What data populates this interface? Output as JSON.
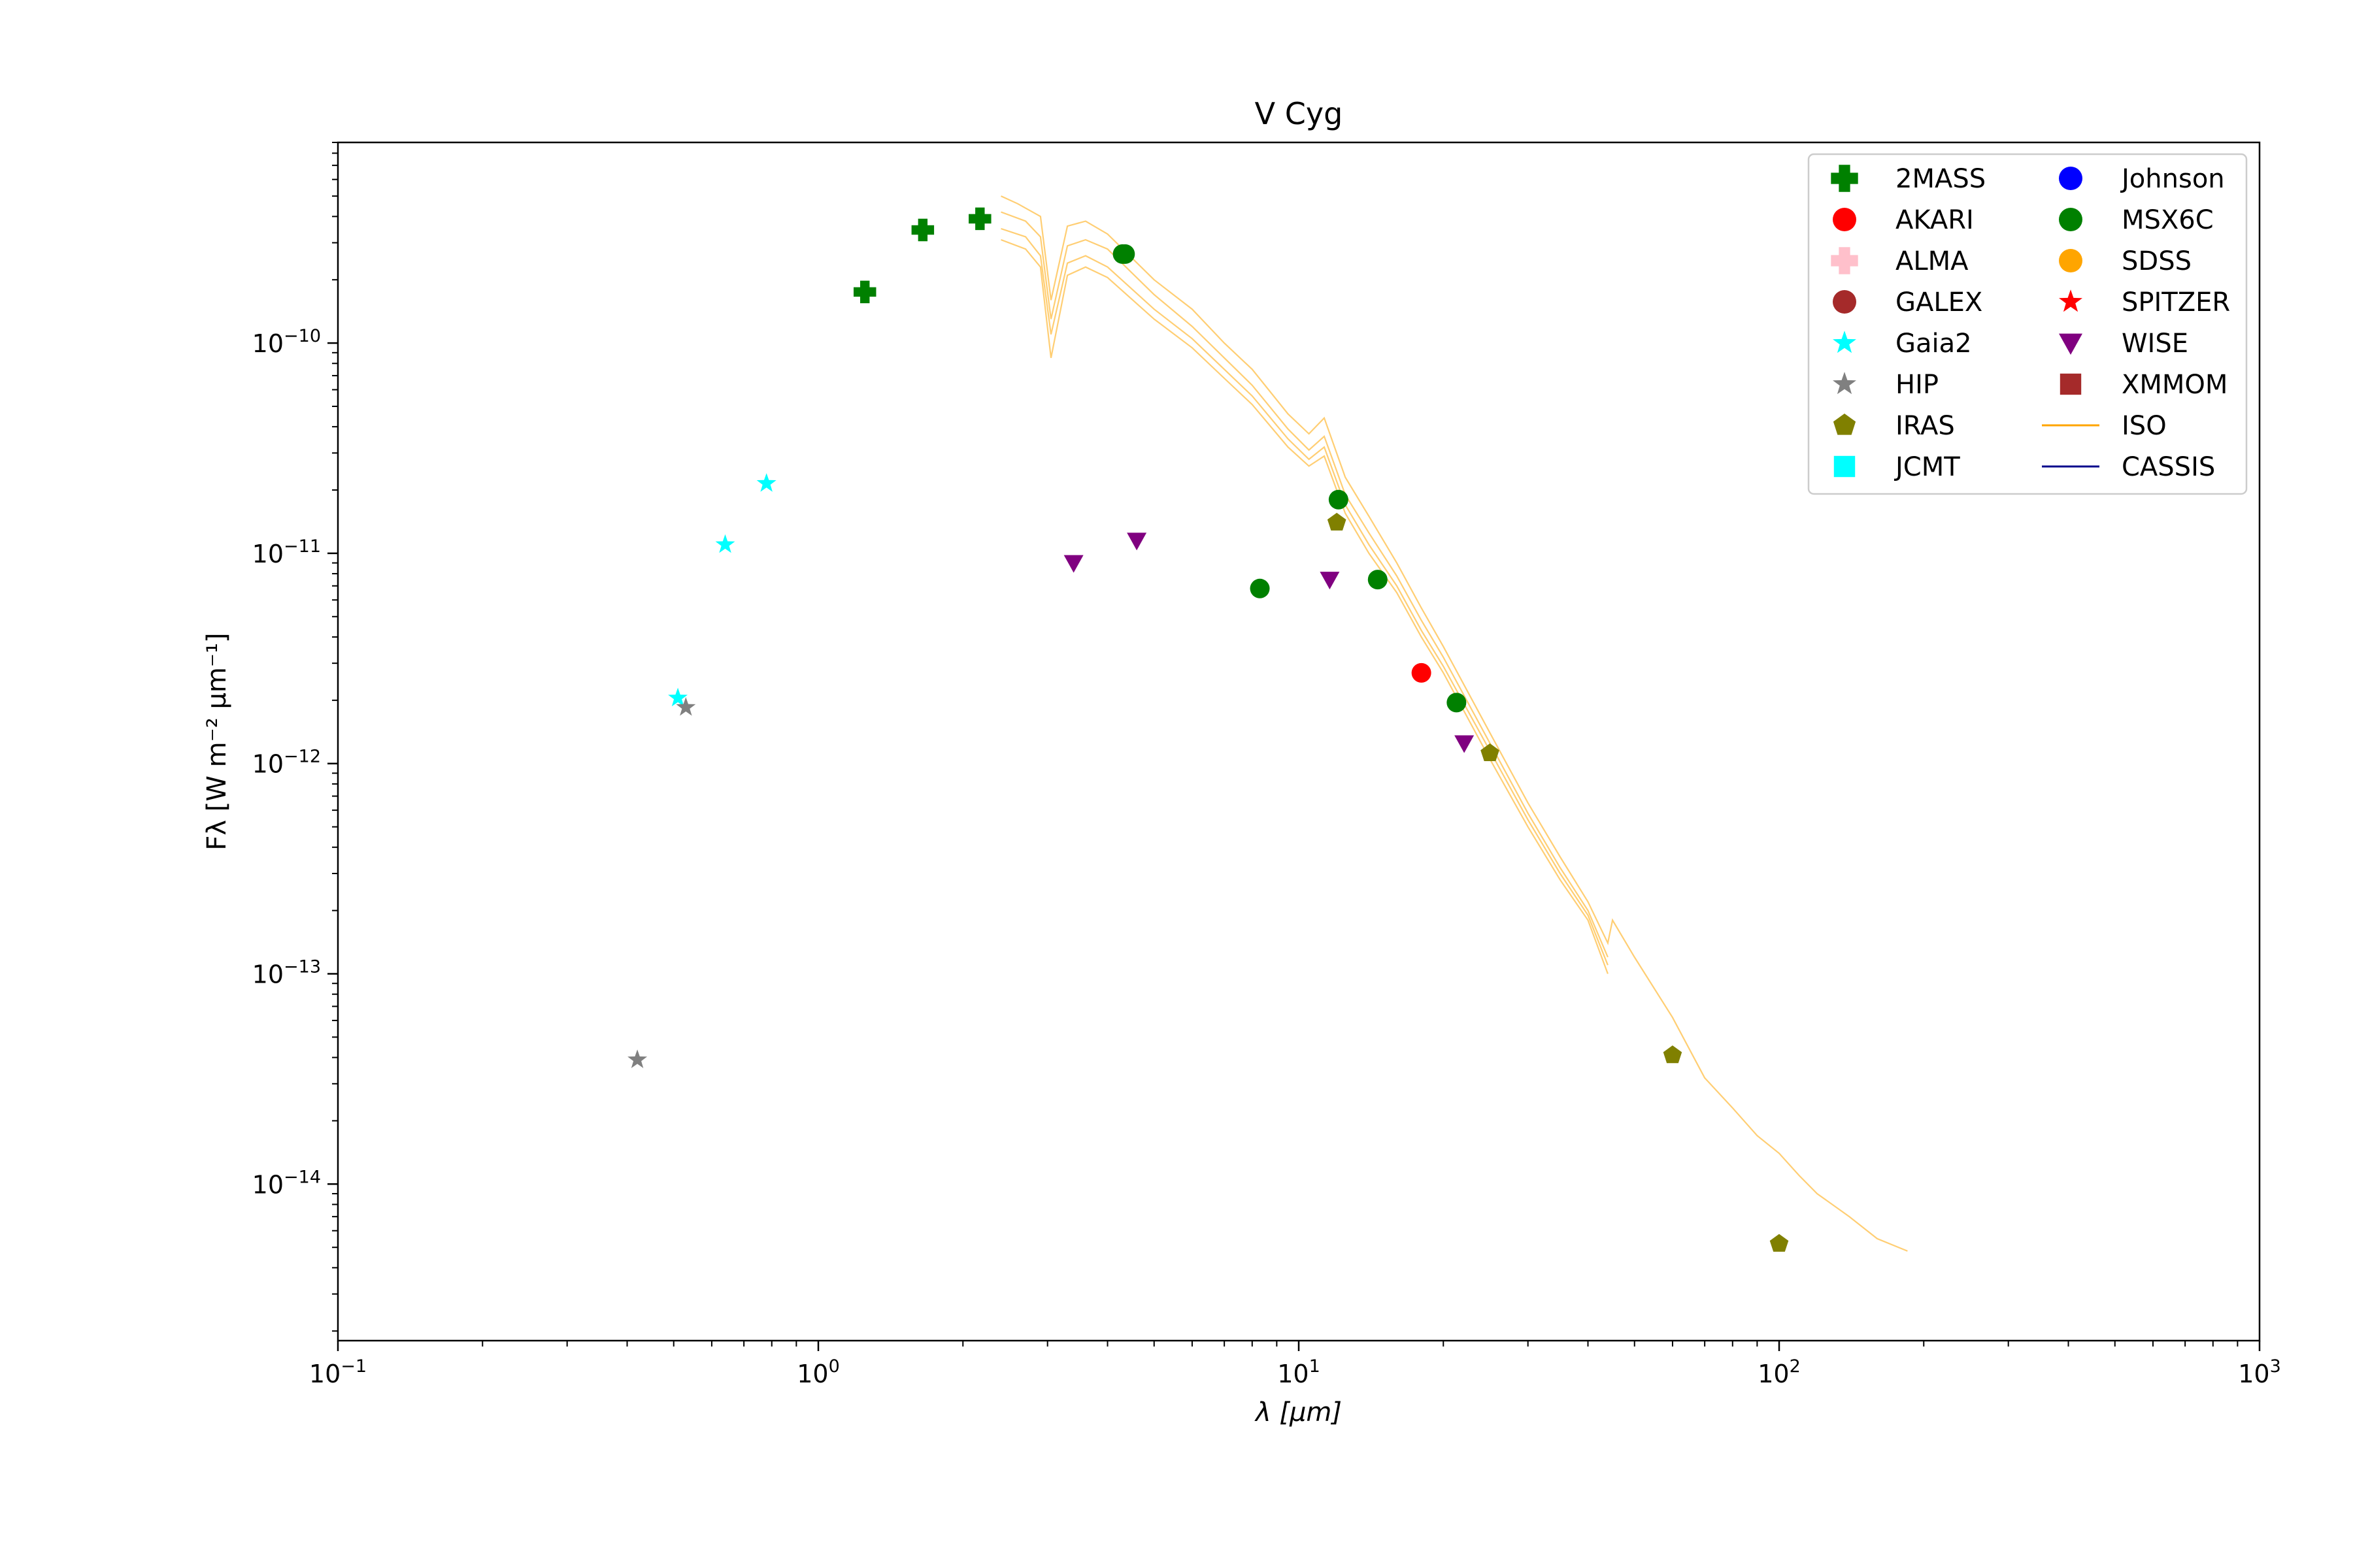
{
  "chart_data": {
    "type": "scatter",
    "title": "V Cyg",
    "xlabel": "λ [μm]",
    "ylabel": "Fλ [W m⁻² μm⁻¹]",
    "xscale": "log",
    "yscale": "log",
    "xlim": [
      0.1,
      1000
    ],
    "ylim": [
      1.8e-15,
      9e-10
    ],
    "grid": false,
    "legend_position": "top-right",
    "x_ticks": [
      {
        "value": 0.1,
        "base": "10",
        "exp": "−1"
      },
      {
        "value": 1,
        "base": "10",
        "exp": "0"
      },
      {
        "value": 10,
        "base": "10",
        "exp": "1"
      },
      {
        "value": 100,
        "base": "10",
        "exp": "2"
      },
      {
        "value": 1000,
        "base": "10",
        "exp": "3"
      }
    ],
    "y_ticks": [
      {
        "value": 1e-14,
        "base": "10",
        "exp": "−14"
      },
      {
        "value": 1e-13,
        "base": "10",
        "exp": "−13"
      },
      {
        "value": 1e-12,
        "base": "10",
        "exp": "−12"
      },
      {
        "value": 1e-11,
        "base": "10",
        "exp": "−11"
      },
      {
        "value": 1e-10,
        "base": "10",
        "exp": "−10"
      }
    ],
    "series": [
      {
        "name": "2MASS",
        "marker": "plus",
        "color": "#008000",
        "points": [
          [
            1.25,
            1.75e-10
          ],
          [
            1.65,
            3.45e-10
          ],
          [
            2.17,
            3.9e-10
          ]
        ]
      },
      {
        "name": "AKARI",
        "marker": "circle",
        "color": "#ff0000",
        "points": [
          [
            18.0,
            2.7e-12
          ]
        ]
      },
      {
        "name": "ALMA",
        "marker": "plus",
        "color": "#ffc0cb",
        "points": []
      },
      {
        "name": "GALEX",
        "marker": "circle",
        "color": "#a52a2a",
        "points": []
      },
      {
        "name": "Gaia2",
        "marker": "star",
        "color": "#00ffff",
        "points": [
          [
            0.51,
            2.05e-12
          ],
          [
            0.64,
            1.1e-11
          ],
          [
            0.78,
            2.15e-11
          ]
        ]
      },
      {
        "name": "HIP",
        "marker": "star",
        "color": "#808080",
        "points": [
          [
            0.42,
            3.9e-14
          ],
          [
            0.53,
            1.85e-12
          ]
        ]
      },
      {
        "name": "IRAS",
        "marker": "pentagon",
        "color": "#808000",
        "points": [
          [
            12.0,
            1.4e-11
          ],
          [
            25.0,
            1.12e-12
          ],
          [
            60.0,
            4.1e-14
          ],
          [
            100.0,
            5.2e-15
          ]
        ]
      },
      {
        "name": "JCMT",
        "marker": "square",
        "color": "#00ffff",
        "points": []
      },
      {
        "name": "Johnson",
        "marker": "circle",
        "color": "#0000ff",
        "points": []
      },
      {
        "name": "MSX6C",
        "marker": "circle",
        "color": "#008000",
        "points": [
          [
            4.3,
            2.65e-10
          ],
          [
            4.35,
            2.65e-10
          ],
          [
            8.3,
            6.8e-12
          ],
          [
            12.1,
            1.8e-11
          ],
          [
            14.6,
            7.5e-12
          ],
          [
            21.3,
            1.95e-12
          ]
        ]
      },
      {
        "name": "SDSS",
        "marker": "circle",
        "color": "#ffa500",
        "points": []
      },
      {
        "name": "SPITZER",
        "marker": "star",
        "color": "#ff0000",
        "points": []
      },
      {
        "name": "WISE",
        "marker": "triangle-down",
        "color": "#800080",
        "points": [
          [
            3.4,
            9e-12
          ],
          [
            4.6,
            1.15e-11
          ],
          [
            11.6,
            7.5e-12
          ],
          [
            22.1,
            1.25e-12
          ]
        ]
      },
      {
        "name": "XMMOM",
        "marker": "square",
        "color": "#a52a2a",
        "points": []
      },
      {
        "name": "ISO",
        "marker": "line",
        "color": "#ffa500",
        "spectra": [
          {
            "points": [
              [
                2.4,
                5e-10
              ],
              [
                2.6,
                4.6e-10
              ],
              [
                2.9,
                4e-10
              ],
              [
                3.05,
                1.6e-10
              ],
              [
                3.3,
                3.6e-10
              ],
              [
                3.6,
                3.8e-10
              ],
              [
                4.0,
                3.3e-10
              ],
              [
                5.0,
                2e-10
              ],
              [
                6.0,
                1.45e-10
              ],
              [
                7.0,
                1e-10
              ],
              [
                8.0,
                7.5e-11
              ],
              [
                9.5,
                4.6e-11
              ],
              [
                10.5,
                3.7e-11
              ],
              [
                11.3,
                4.4e-11
              ],
              [
                12.5,
                2.3e-11
              ],
              [
                14.0,
                1.5e-11
              ],
              [
                16.0,
                9e-12
              ],
              [
                18.0,
                5.5e-12
              ],
              [
                20.0,
                3.6e-12
              ],
              [
                25.0,
                1.4e-12
              ],
              [
                30.0,
                6.5e-13
              ],
              [
                35.0,
                3.6e-13
              ],
              [
                40.0,
                2.2e-13
              ],
              [
                44.0,
                1.4e-13
              ],
              [
                45.0,
                1.8e-13
              ],
              [
                50.0,
                1.2e-13
              ],
              [
                60.0,
                6.2e-14
              ],
              [
                70.0,
                3.2e-14
              ],
              [
                80.0,
                2.3e-14
              ],
              [
                90.0,
                1.7e-14
              ],
              [
                100.0,
                1.4e-14
              ],
              [
                110.0,
                1.1e-14
              ],
              [
                120.0,
                9e-15
              ],
              [
                140.0,
                7e-15
              ],
              [
                160.0,
                5.5e-15
              ],
              [
                185.0,
                4.8e-15
              ]
            ]
          },
          {
            "points": [
              [
                2.4,
                4.2e-10
              ],
              [
                2.7,
                3.8e-10
              ],
              [
                2.9,
                3.2e-10
              ],
              [
                3.05,
                1.3e-10
              ],
              [
                3.3,
                2.9e-10
              ],
              [
                3.6,
                3.1e-10
              ],
              [
                4.0,
                2.8e-10
              ],
              [
                5.0,
                1.7e-10
              ],
              [
                6.0,
                1.2e-10
              ],
              [
                7.0,
                8.5e-11
              ],
              [
                8.0,
                6.3e-11
              ],
              [
                9.5,
                3.9e-11
              ],
              [
                10.5,
                3.1e-11
              ],
              [
                11.3,
                3.6e-11
              ],
              [
                12.5,
                1.9e-11
              ],
              [
                14.0,
                1.25e-11
              ],
              [
                16.0,
                7.8e-12
              ],
              [
                18.0,
                4.8e-12
              ],
              [
                20.0,
                3.2e-12
              ],
              [
                25.0,
                1.25e-12
              ],
              [
                30.0,
                5.8e-13
              ],
              [
                35.0,
                3.2e-13
              ],
              [
                40.0,
                2e-13
              ],
              [
                44.0,
                1.2e-13
              ]
            ]
          },
          {
            "points": [
              [
                2.4,
                3.5e-10
              ],
              [
                2.7,
                3.2e-10
              ],
              [
                2.9,
                2.6e-10
              ],
              [
                3.05,
                1.1e-10
              ],
              [
                3.3,
                2.4e-10
              ],
              [
                3.6,
                2.6e-10
              ],
              [
                4.0,
                2.3e-10
              ],
              [
                5.0,
                1.45e-10
              ],
              [
                6.0,
                1.05e-10
              ],
              [
                7.0,
                7.5e-11
              ],
              [
                8.0,
                5.6e-11
              ],
              [
                9.5,
                3.5e-11
              ],
              [
                10.5,
                2.8e-11
              ],
              [
                11.3,
                3.2e-11
              ],
              [
                12.5,
                1.7e-11
              ],
              [
                14.0,
                1.1e-11
              ],
              [
                16.0,
                7e-12
              ],
              [
                18.0,
                4.3e-12
              ],
              [
                20.0,
                2.9e-12
              ],
              [
                25.0,
                1.15e-12
              ],
              [
                30.0,
                5.4e-13
              ],
              [
                35.0,
                3e-13
              ],
              [
                40.0,
                1.9e-13
              ],
              [
                44.0,
                1.1e-13
              ]
            ]
          },
          {
            "points": [
              [
                2.4,
                3.1e-10
              ],
              [
                2.7,
                2.8e-10
              ],
              [
                2.9,
                2.3e-10
              ],
              [
                3.05,
                8.5e-11
              ],
              [
                3.3,
                2.1e-10
              ],
              [
                3.6,
                2.3e-10
              ],
              [
                4.0,
                2.05e-10
              ],
              [
                5.0,
                1.3e-10
              ],
              [
                6.0,
                9.5e-11
              ],
              [
                7.0,
                6.8e-11
              ],
              [
                8.0,
                5.1e-11
              ],
              [
                9.5,
                3.2e-11
              ],
              [
                10.5,
                2.6e-11
              ],
              [
                11.3,
                2.9e-11
              ],
              [
                12.5,
                1.55e-11
              ],
              [
                14.0,
                1e-11
              ],
              [
                16.0,
                6.5e-12
              ],
              [
                18.0,
                4e-12
              ],
              [
                20.0,
                2.7e-12
              ],
              [
                25.0,
                1.05e-12
              ],
              [
                30.0,
                5e-13
              ],
              [
                35.0,
                2.8e-13
              ],
              [
                40.0,
                1.8e-13
              ],
              [
                44.0,
                1e-13
              ]
            ]
          }
        ]
      },
      {
        "name": "CASSIS",
        "marker": "line",
        "color": "#00008b",
        "spectra": []
      }
    ]
  }
}
